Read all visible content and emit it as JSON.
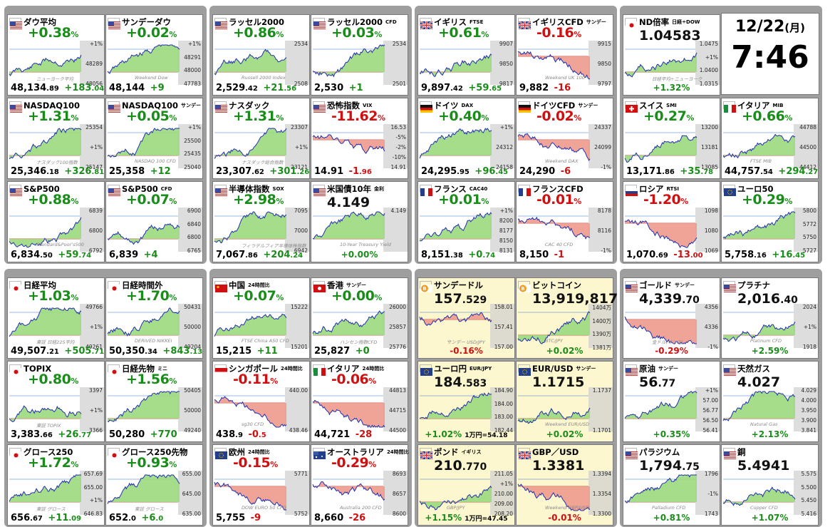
{
  "clock": {
    "date": "12/22",
    "weekday": "(月)",
    "time": "7:46"
  },
  "colors": {
    "up": "#1a8c1a",
    "down": "#d01010",
    "panel": "#9e9e9e",
    "green_area": "#7ecf5e",
    "red_area": "#e87a6a"
  },
  "cards": [
    {
      "id": "dow",
      "name": "ダウ平均",
      "sub": "",
      "flag": "us",
      "pct": "+0.38",
      "dir": "pos",
      "price": "48,134",
      "price_dec": ".89",
      "chg": "+183",
      "chg_dec": ".04",
      "ticks": [
        "+1%",
        "48289",
        "48056"
      ],
      "wm": "ニューヨーク平均"
    },
    {
      "id": "sunday-dow",
      "name": "サンデーダウ",
      "sub": "",
      "flag": "us",
      "pct": "+0.02",
      "dir": "pos",
      "price": "48,144",
      "price_dec": "",
      "chg": "+9",
      "chg_dec": "",
      "ticks": [
        "+1%",
        "48291",
        "48000",
        "47783"
      ],
      "wm": "Weekend Dow"
    },
    {
      "id": "russell",
      "name": "ラッセル2000",
      "sub": "",
      "flag": "us",
      "pct": "+0.86",
      "dir": "pos",
      "price": "2,529",
      "price_dec": ".42",
      "chg": "+21",
      "chg_dec": ".56",
      "ticks": [
        "2534",
        "2508"
      ],
      "wm": "Russell 2000 Index"
    },
    {
      "id": "russell-cfd",
      "name": "ラッセル2000",
      "sub": "CFD",
      "flag": "us",
      "pct": "+0.03",
      "dir": "pos",
      "price": "2,530",
      "price_dec": "",
      "chg": "+1",
      "chg_dec": "",
      "ticks": [
        "2534",
        "2501"
      ],
      "wm": ""
    },
    {
      "id": "ftse",
      "name": "イギリス",
      "sub": "FTSE",
      "flag": "uk",
      "pct": "+0.61",
      "dir": "pos",
      "price": "9,897",
      "price_dec": ".42",
      "chg": "+59",
      "chg_dec": ".65",
      "ticks": [
        "9907",
        "9850",
        "9817"
      ],
      "wm": ""
    },
    {
      "id": "ftse-cfd",
      "name": "イギリスCFD",
      "sub": "サンデー",
      "flag": "uk",
      "pct": "-0.16",
      "dir": "neg",
      "price": "9,882",
      "price_dec": "",
      "chg": "-16",
      "chg_dec": "",
      "ticks": [
        "9915",
        "9850",
        "9797"
      ],
      "wm": "Weekend UK 100"
    },
    {
      "id": "nd-ratio",
      "name": "ND倍率",
      "sub": "日経÷DOW",
      "flag": "jp",
      "pct": "+1.32",
      "dir": "pos",
      "price": "1.04583",
      "price_dec": "",
      "chg": "",
      "chg_dec": "",
      "ticks": [
        "1.0475",
        "+1%",
        "1.0400",
        "1.0315"
      ],
      "wm": "日経平均÷ニューヨーク"
    },
    {
      "id": "nasdaq100",
      "name": "NASDAQ100",
      "sub": "",
      "flag": "us",
      "pct": "+1.31",
      "dir": "pos",
      "price": "25,346",
      "price_dec": ".18",
      "chg": "+326",
      "chg_dec": ".81",
      "ticks": [
        "25354",
        "+1%",
        "25147"
      ],
      "wm": "ナスダック100指数"
    },
    {
      "id": "nasdaq100-sun",
      "name": "NASDAQ100",
      "sub": "サンデー",
      "flag": "us",
      "pct": "+0.05",
      "dir": "pos",
      "price": "25,358",
      "price_dec": "",
      "chg": "+12",
      "chg_dec": "",
      "ticks": [
        "+1%",
        "25500",
        "25435",
        "25040"
      ],
      "wm": "NASDAQ 100 CFD"
    },
    {
      "id": "nasdaq",
      "name": "ナスダック",
      "sub": "",
      "flag": "us",
      "pct": "+1.31",
      "dir": "pos",
      "price": "23,307",
      "price_dec": ".62",
      "chg": "+301",
      "chg_dec": ".26",
      "ticks": [
        "23307",
        "+1%",
        "23121"
      ],
      "wm": "ナスダック総合指数"
    },
    {
      "id": "vix",
      "name": "恐怖指数",
      "sub": "VIX",
      "flag": "us",
      "pct": "-11.62",
      "dir": "neg",
      "price": "14.91",
      "price_dec": "",
      "chg": "-1",
      "chg_dec": ".96",
      "ticks": [
        "16.53",
        "-5%",
        "-2%",
        "-10%",
        "14.91"
      ],
      "wm": ""
    },
    {
      "id": "dax",
      "name": "ドイツ",
      "sub": "DAX",
      "flag": "de",
      "pct": "+0.40",
      "dir": "pos",
      "price": "24,295",
      "price_dec": ".95",
      "chg": "+96",
      "chg_dec": ".45",
      "ticks": [
        "+1%",
        "24312",
        "24158"
      ],
      "wm": ""
    },
    {
      "id": "dax-cfd",
      "name": "ドイツCFD",
      "sub": "サンデー",
      "flag": "de",
      "pct": "-0.02",
      "dir": "neg",
      "price": "24,290",
      "price_dec": "",
      "chg": "-6",
      "chg_dec": "",
      "ticks": [
        "24337",
        "24099",
        "-1%"
      ],
      "wm": "Weekend DAX"
    },
    {
      "id": "smi",
      "name": "スイス",
      "sub": "SMI",
      "flag": "ch",
      "pct": "+0.27",
      "dir": "pos",
      "price": "13,171",
      "price_dec": ".86",
      "chg": "+35",
      "chg_dec": ".78",
      "ticks": [
        "13200",
        "13181",
        "13085"
      ],
      "wm": ""
    },
    {
      "id": "mib",
      "name": "イタリア",
      "sub": "MIB",
      "flag": "it",
      "pct": "+0.66",
      "dir": "pos",
      "price": "44,757",
      "price_dec": ".54",
      "chg": "+294",
      "chg_dec": ".27",
      "ticks": [
        "44788",
        "44500",
        "44412"
      ],
      "wm": "FTSE MIB"
    },
    {
      "id": "sp500",
      "name": "S&P500",
      "sub": "",
      "flag": "us",
      "pct": "+0.88",
      "dir": "pos",
      "price": "6,834",
      "price_dec": ".50",
      "chg": "+59",
      "chg_dec": ".74",
      "ticks": [
        "6839",
        "6800",
        "6792"
      ],
      "wm": "Standard&Poor's500"
    },
    {
      "id": "sp500-cfd",
      "name": "S&P500",
      "sub": "CFD",
      "flag": "us",
      "pct": "+0.07",
      "dir": "pos",
      "price": "6,839",
      "price_dec": "",
      "chg": "+4",
      "chg_dec": "",
      "ticks": [
        "6900",
        "6840",
        "6800",
        "6765"
      ],
      "wm": ""
    },
    {
      "id": "sox",
      "name": "半導体指数",
      "sub": "SOX",
      "flag": "us",
      "pct": "+2.98",
      "dir": "pos",
      "price": "7,067",
      "price_dec": ".86",
      "chg": "+204",
      "chg_dec": ".24",
      "ticks": [
        "7095",
        "7000",
        "6942"
      ],
      "wm": "フィラデルフィア半導体株指数"
    },
    {
      "id": "us10y",
      "name": "米国債10年",
      "sub": "金利",
      "flag": "us",
      "pct": "+0.00",
      "dir": "zero",
      "price": "4.149",
      "price_dec": "",
      "chg": "",
      "chg_dec": "",
      "ticks": [
        "4.149"
      ],
      "wm": "10-Year Treasury Yield"
    },
    {
      "id": "cac",
      "name": "フランス",
      "sub": "CAC40",
      "flag": "fr",
      "pct": "+0.01",
      "dir": "pos",
      "price": "8,151",
      "price_dec": ".38",
      "chg": "+0",
      "chg_dec": ".74",
      "ticks": [
        "+1%",
        "8200",
        "8177",
        "8150",
        "8131"
      ],
      "wm": ""
    },
    {
      "id": "cac-cfd",
      "name": "フランスCFD",
      "sub": "",
      "flag": "fr",
      "pct": "-0.01",
      "dir": "neg",
      "price": "8,150",
      "price_dec": "",
      "chg": "-1",
      "chg_dec": "",
      "ticks": [
        "8178",
        "8116",
        "-1%"
      ],
      "wm": "CAC 40 CFD"
    },
    {
      "id": "rtsi",
      "name": "ロシア",
      "sub": "RTSI",
      "flag": "ru",
      "pct": "-1.20",
      "dir": "neg",
      "price": "1,070",
      "price_dec": ".69",
      "chg": "-13",
      "chg_dec": ".00",
      "ticks": [
        "1098",
        "1080",
        "1069"
      ],
      "wm": ""
    },
    {
      "id": "euro50",
      "name": "ユーロ50",
      "sub": "",
      "flag": "eu",
      "pct": "+0.29",
      "dir": "pos",
      "price": "5,758",
      "price_dec": ".16",
      "chg": "+16",
      "chg_dec": ".45",
      "ticks": [
        "5800",
        "5772",
        "5750",
        "5727"
      ],
      "wm": ""
    },
    {
      "id": "nikkei",
      "name": "日経平均",
      "sub": "",
      "flag": "jp",
      "pct": "+1.03",
      "dir": "pos",
      "price": "49,507",
      "price_dec": ".21",
      "chg": "+505",
      "chg_dec": ".71",
      "ticks": [
        "49766",
        "+1%",
        "49261"
      ],
      "wm": "東証 日経225平均"
    },
    {
      "id": "nikkei-night",
      "name": "日経時間外",
      "sub": "",
      "flag": "jp",
      "pct": "+1.70",
      "dir": "pos",
      "price": "50,350",
      "price_dec": ".34",
      "chg": "+843",
      "chg_dec": ".13",
      "ticks": [
        "50431",
        "50000",
        "49204"
      ],
      "wm": "DERIVED NIKKEI"
    },
    {
      "id": "china",
      "name": "中国",
      "sub": "24時間比",
      "flag": "cn",
      "pct": "+0.07",
      "dir": "pos",
      "price": "15,215",
      "price_dec": "",
      "chg": "+11",
      "chg_dec": "",
      "ticks": [
        "15222",
        "15201"
      ],
      "wm": "FTSE China A50 CFD"
    },
    {
      "id": "hongkong",
      "name": "香港",
      "sub": "サンデー",
      "flag": "hk",
      "pct": "+0.00",
      "dir": "zero",
      "price": "25,827",
      "price_dec": "",
      "chg": "+0",
      "chg_dec": "",
      "ticks": [
        "26000",
        "25857",
        "25776"
      ],
      "wm": "ハンセン指数CFD"
    },
    {
      "id": "sunday-usdjpy",
      "name": "サンデードル",
      "sub": "",
      "flag": "btc",
      "pct": "-0.16",
      "dir": "neg",
      "price": "157",
      "price_dec": ".529",
      "chg": "",
      "chg_dec": "",
      "ticks": [
        "158.01",
        "157.41",
        "157.00"
      ],
      "wm": "サンデー USD/JPY",
      "pale": true
    },
    {
      "id": "bitcoin",
      "name": "ビットコイン",
      "sub": "",
      "flag": "btc",
      "pct": "+0.02",
      "dir": "pos",
      "price": "13,919,817",
      "price_dec": "",
      "chg": "",
      "chg_dec": "",
      "ticks": [
        "1404万",
        "1400万",
        "1390万",
        "1381万"
      ],
      "wm": "BTC/JPY",
      "pale": true
    },
    {
      "id": "gold",
      "name": "ゴールド",
      "sub": "サンデー",
      "flag": "us",
      "pct": "-0.29",
      "dir": "neg",
      "price": "4,339",
      "price_dec": ".70",
      "chg": "",
      "chg_dec": "",
      "ticks": [
        "4356",
        "4336",
        "-1%"
      ],
      "wm": "金ドル(オンス)"
    },
    {
      "id": "platinum",
      "name": "プラチナ",
      "sub": "",
      "flag": "us",
      "pct": "+2.59",
      "dir": "pos",
      "price": "2,016",
      "price_dec": ".40",
      "chg": "",
      "chg_dec": "",
      "ticks": [
        "2024",
        "+1%",
        "1918"
      ],
      "wm": "Platinum CFD"
    },
    {
      "id": "topix",
      "name": "TOPIX",
      "sub": "",
      "flag": "jp",
      "pct": "+0.80",
      "dir": "pos",
      "price": "3,383",
      "price_dec": ".66",
      "chg": "+26",
      "chg_dec": ".77",
      "ticks": [
        "3397",
        "+1%",
        "3366"
      ],
      "wm": "東証 TOPIX"
    },
    {
      "id": "nikkei-fut",
      "name": "日経先物",
      "sub": "ミニ",
      "flag": "jp",
      "pct": "+1.56",
      "dir": "pos",
      "price": "50,280",
      "price_dec": "",
      "chg": "+770",
      "chg_dec": "",
      "ticks": [
        "50405",
        "50000",
        "49240"
      ],
      "wm": ""
    },
    {
      "id": "singapore",
      "name": "シンガポール",
      "sub": "24時間比",
      "flag": "sg",
      "pct": "-0.11",
      "dir": "neg",
      "price": "438",
      "price_dec": ".9",
      "chg": "-0",
      "chg_dec": ".5",
      "ticks": [
        "440.00",
        "438.46"
      ],
      "wm": "sg30 CFD"
    },
    {
      "id": "italy",
      "name": "イタリア",
      "sub": "24時間比",
      "flag": "it",
      "pct": "-0.06",
      "dir": "neg",
      "price": "44,721",
      "price_dec": "",
      "chg": "-28",
      "chg_dec": "",
      "ticks": [
        "44813",
        "44715",
        "44500"
      ],
      "wm": ""
    },
    {
      "id": "eurjpy",
      "name": "ユーロ円",
      "sub": "EUR/JPY",
      "flag": "eu",
      "pct": "+1.02",
      "dir": "pos",
      "price": "184",
      "price_dec": ".583",
      "chg": "",
      "chg_dec": "",
      "ticks": [
        "184.90",
        "184.00",
        "183.00",
        "182.44"
      ],
      "wm": "",
      "extra": "1万円=54.18",
      "pale": true
    },
    {
      "id": "eurusd",
      "name": "EUR/USD",
      "sub": "サンデー",
      "flag": "eu",
      "pct": "+0.02",
      "dir": "pos",
      "price": "1.1715",
      "price_dec": "",
      "chg": "",
      "chg_dec": "",
      "ticks": [
        "1.1737",
        "1.1701"
      ],
      "wm": "Weekend EUR/USD",
      "pale": true
    },
    {
      "id": "crude",
      "name": "原油",
      "sub": "サンデー",
      "flag": "us",
      "pct": "+0.35",
      "dir": "pos",
      "price": "56",
      "price_dec": ".77",
      "chg": "",
      "chg_dec": "",
      "ticks": [
        "+1%",
        "57.00",
        "56.77",
        "56.50",
        "56.41"
      ],
      "wm": ""
    },
    {
      "id": "natgas",
      "name": "天然ガス",
      "sub": "",
      "flag": "us",
      "pct": "+2.13",
      "dir": "pos",
      "price": "4.027",
      "price_dec": "",
      "chg": "",
      "chg_dec": "",
      "ticks": [
        "4.029",
        "4.000",
        "3.950",
        "3.900",
        "3.841"
      ],
      "wm": "Natural Gas"
    },
    {
      "id": "growth250",
      "name": "グロース250",
      "sub": "",
      "flag": "jp",
      "pct": "+1.72",
      "dir": "pos",
      "price": "656",
      "price_dec": ".67",
      "chg": "+11",
      "chg_dec": ".09",
      "ticks": [
        "657.69",
        "655.00",
        "+1%",
        "646.83"
      ],
      "wm": "東証 グロース"
    },
    {
      "id": "growth250-fut",
      "name": "グロース250先物",
      "sub": "",
      "flag": "jp",
      "pct": "+0.93",
      "dir": "pos",
      "price": "652",
      "price_dec": ".0",
      "chg": "+6",
      "chg_dec": ".0",
      "ticks": [
        "655.00",
        "645.00",
        "635.00"
      ],
      "wm": "東証 グロース"
    },
    {
      "id": "europe",
      "name": "欧州",
      "sub": "24時間比",
      "flag": "eu",
      "pct": "-0.15",
      "dir": "neg",
      "price": "5,755",
      "price_dec": "",
      "chg": "-9",
      "chg_dec": "",
      "ticks": [
        "5771",
        "5752"
      ],
      "wm": "DOW EURO 50 CFD"
    },
    {
      "id": "australia",
      "name": "オーストラリア",
      "sub": "24時間比",
      "flag": "au",
      "pct": "-0.29",
      "dir": "neg",
      "price": "8,660",
      "price_dec": "",
      "chg": "-26",
      "chg_dec": "",
      "ticks": [
        "8693",
        "8657",
        "8600"
      ],
      "wm": "Australia 200 CFD"
    },
    {
      "id": "gbpjpy",
      "name": "ポンド",
      "sub": "イギリス",
      "flag": "uk",
      "pct": "+1.15",
      "dir": "pos",
      "price": "210",
      "price_dec": ".770",
      "chg": "",
      "chg_dec": "",
      "ticks": [
        "211.05",
        "+1%",
        "210.00",
        "209.00",
        "208.20"
      ],
      "wm": "GBP/JPY",
      "extra": "1万円=47.45",
      "pale": true
    },
    {
      "id": "gbpusd",
      "name": "GBP／USD",
      "sub": "",
      "flag": "uk",
      "pct": "-0.01",
      "dir": "neg",
      "price": "1.3381",
      "price_dec": "",
      "chg": "",
      "chg_dec": "",
      "ticks": [
        "1.3394",
        "1.3354",
        "1.3300"
      ],
      "wm": "Weekend GBP/USD",
      "pale": true
    },
    {
      "id": "palladium",
      "name": "パラジウム",
      "sub": "",
      "flag": "us",
      "pct": "+0.81",
      "dir": "pos",
      "price": "1,794",
      "price_dec": ".75",
      "chg": "",
      "chg_dec": "",
      "ticks": [
        "1796",
        "-1%",
        "1743"
      ],
      "wm": "Palladium CFD"
    },
    {
      "id": "copper",
      "name": "銅",
      "sub": "",
      "flag": "us",
      "pct": "+1.07",
      "dir": "pos",
      "price": "5.4941",
      "price_dec": "",
      "chg": "",
      "chg_dec": "",
      "ticks": [
        "5.575",
        "5.500",
        "5.450",
        "5.416"
      ],
      "wm": "Copper CFD"
    }
  ]
}
